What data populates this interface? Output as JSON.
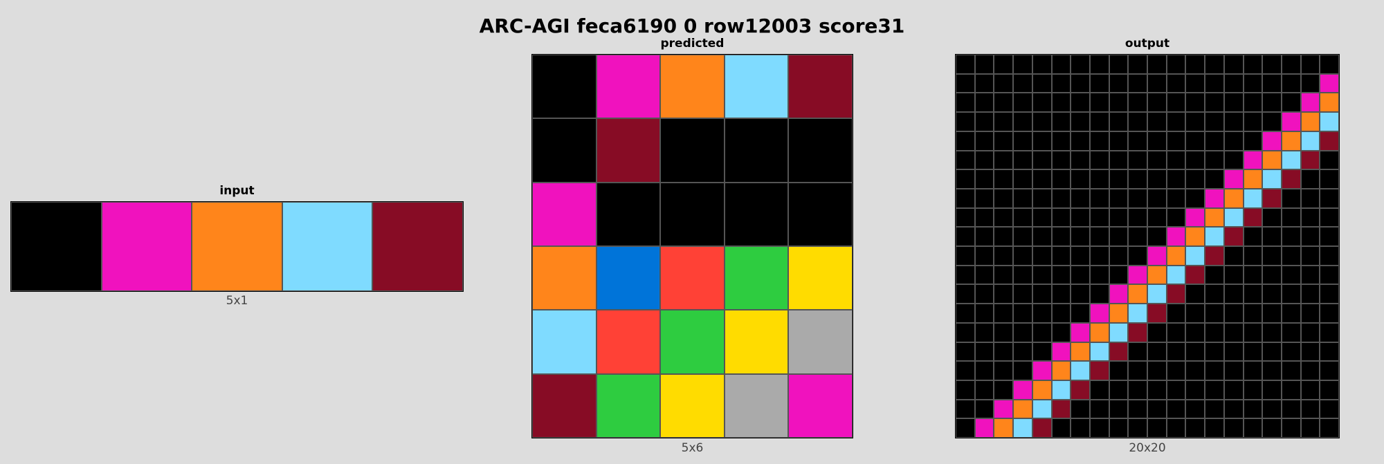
{
  "title": "ARC-AGI feca6190 0 row12003 score31",
  "palette": {
    "0": "#000000",
    "1": "#0074D9",
    "2": "#FF4136",
    "3": "#2ECC40",
    "4": "#FFDC00",
    "5": "#AAAAAA",
    "6": "#F012BE",
    "7": "#FF851B",
    "8": "#7FDBFF",
    "9": "#870C25"
  },
  "panels": {
    "input": {
      "title": "input",
      "caption": "5x1",
      "rows": 1,
      "cols": 5,
      "grid": [
        [
          0,
          6,
          7,
          8,
          9
        ]
      ]
    },
    "predicted": {
      "title": "predicted",
      "caption": "5x6",
      "rows": 6,
      "cols": 5,
      "grid": [
        [
          0,
          6,
          7,
          8,
          9
        ],
        [
          0,
          9,
          0,
          0,
          0
        ],
        [
          6,
          0,
          0,
          0,
          0
        ],
        [
          7,
          1,
          2,
          3,
          4
        ],
        [
          8,
          2,
          3,
          4,
          5
        ],
        [
          9,
          3,
          4,
          5,
          6
        ]
      ]
    },
    "output": {
      "title": "output",
      "caption": "20x20",
      "rows": 20,
      "cols": 20,
      "grid": [
        [
          0,
          0,
          0,
          0,
          0,
          0,
          0,
          0,
          0,
          0,
          0,
          0,
          0,
          0,
          0,
          0,
          0,
          0,
          0,
          0
        ],
        [
          0,
          0,
          0,
          0,
          0,
          0,
          0,
          0,
          0,
          0,
          0,
          0,
          0,
          0,
          0,
          0,
          0,
          0,
          0,
          6
        ],
        [
          0,
          0,
          0,
          0,
          0,
          0,
          0,
          0,
          0,
          0,
          0,
          0,
          0,
          0,
          0,
          0,
          0,
          0,
          6,
          7
        ],
        [
          0,
          0,
          0,
          0,
          0,
          0,
          0,
          0,
          0,
          0,
          0,
          0,
          0,
          0,
          0,
          0,
          0,
          6,
          7,
          8
        ],
        [
          0,
          0,
          0,
          0,
          0,
          0,
          0,
          0,
          0,
          0,
          0,
          0,
          0,
          0,
          0,
          0,
          6,
          7,
          8,
          9
        ],
        [
          0,
          0,
          0,
          0,
          0,
          0,
          0,
          0,
          0,
          0,
          0,
          0,
          0,
          0,
          0,
          6,
          7,
          8,
          9,
          0
        ],
        [
          0,
          0,
          0,
          0,
          0,
          0,
          0,
          0,
          0,
          0,
          0,
          0,
          0,
          0,
          6,
          7,
          8,
          9,
          0,
          0
        ],
        [
          0,
          0,
          0,
          0,
          0,
          0,
          0,
          0,
          0,
          0,
          0,
          0,
          0,
          6,
          7,
          8,
          9,
          0,
          0,
          0
        ],
        [
          0,
          0,
          0,
          0,
          0,
          0,
          0,
          0,
          0,
          0,
          0,
          0,
          6,
          7,
          8,
          9,
          0,
          0,
          0,
          0
        ],
        [
          0,
          0,
          0,
          0,
          0,
          0,
          0,
          0,
          0,
          0,
          0,
          6,
          7,
          8,
          9,
          0,
          0,
          0,
          0,
          0
        ],
        [
          0,
          0,
          0,
          0,
          0,
          0,
          0,
          0,
          0,
          0,
          6,
          7,
          8,
          9,
          0,
          0,
          0,
          0,
          0,
          0
        ],
        [
          0,
          0,
          0,
          0,
          0,
          0,
          0,
          0,
          0,
          6,
          7,
          8,
          9,
          0,
          0,
          0,
          0,
          0,
          0,
          0
        ],
        [
          0,
          0,
          0,
          0,
          0,
          0,
          0,
          0,
          6,
          7,
          8,
          9,
          0,
          0,
          0,
          0,
          0,
          0,
          0,
          0
        ],
        [
          0,
          0,
          0,
          0,
          0,
          0,
          0,
          6,
          7,
          8,
          9,
          0,
          0,
          0,
          0,
          0,
          0,
          0,
          0,
          0
        ],
        [
          0,
          0,
          0,
          0,
          0,
          0,
          6,
          7,
          8,
          9,
          0,
          0,
          0,
          0,
          0,
          0,
          0,
          0,
          0,
          0
        ],
        [
          0,
          0,
          0,
          0,
          0,
          6,
          7,
          8,
          9,
          0,
          0,
          0,
          0,
          0,
          0,
          0,
          0,
          0,
          0,
          0
        ],
        [
          0,
          0,
          0,
          0,
          6,
          7,
          8,
          9,
          0,
          0,
          0,
          0,
          0,
          0,
          0,
          0,
          0,
          0,
          0,
          0
        ],
        [
          0,
          0,
          0,
          6,
          7,
          8,
          9,
          0,
          0,
          0,
          0,
          0,
          0,
          0,
          0,
          0,
          0,
          0,
          0,
          0
        ],
        [
          0,
          0,
          6,
          7,
          8,
          9,
          0,
          0,
          0,
          0,
          0,
          0,
          0,
          0,
          0,
          0,
          0,
          0,
          0,
          0
        ],
        [
          0,
          6,
          7,
          8,
          9,
          0,
          0,
          0,
          0,
          0,
          0,
          0,
          0,
          0,
          0,
          0,
          0,
          0,
          0,
          0
        ]
      ]
    }
  }
}
